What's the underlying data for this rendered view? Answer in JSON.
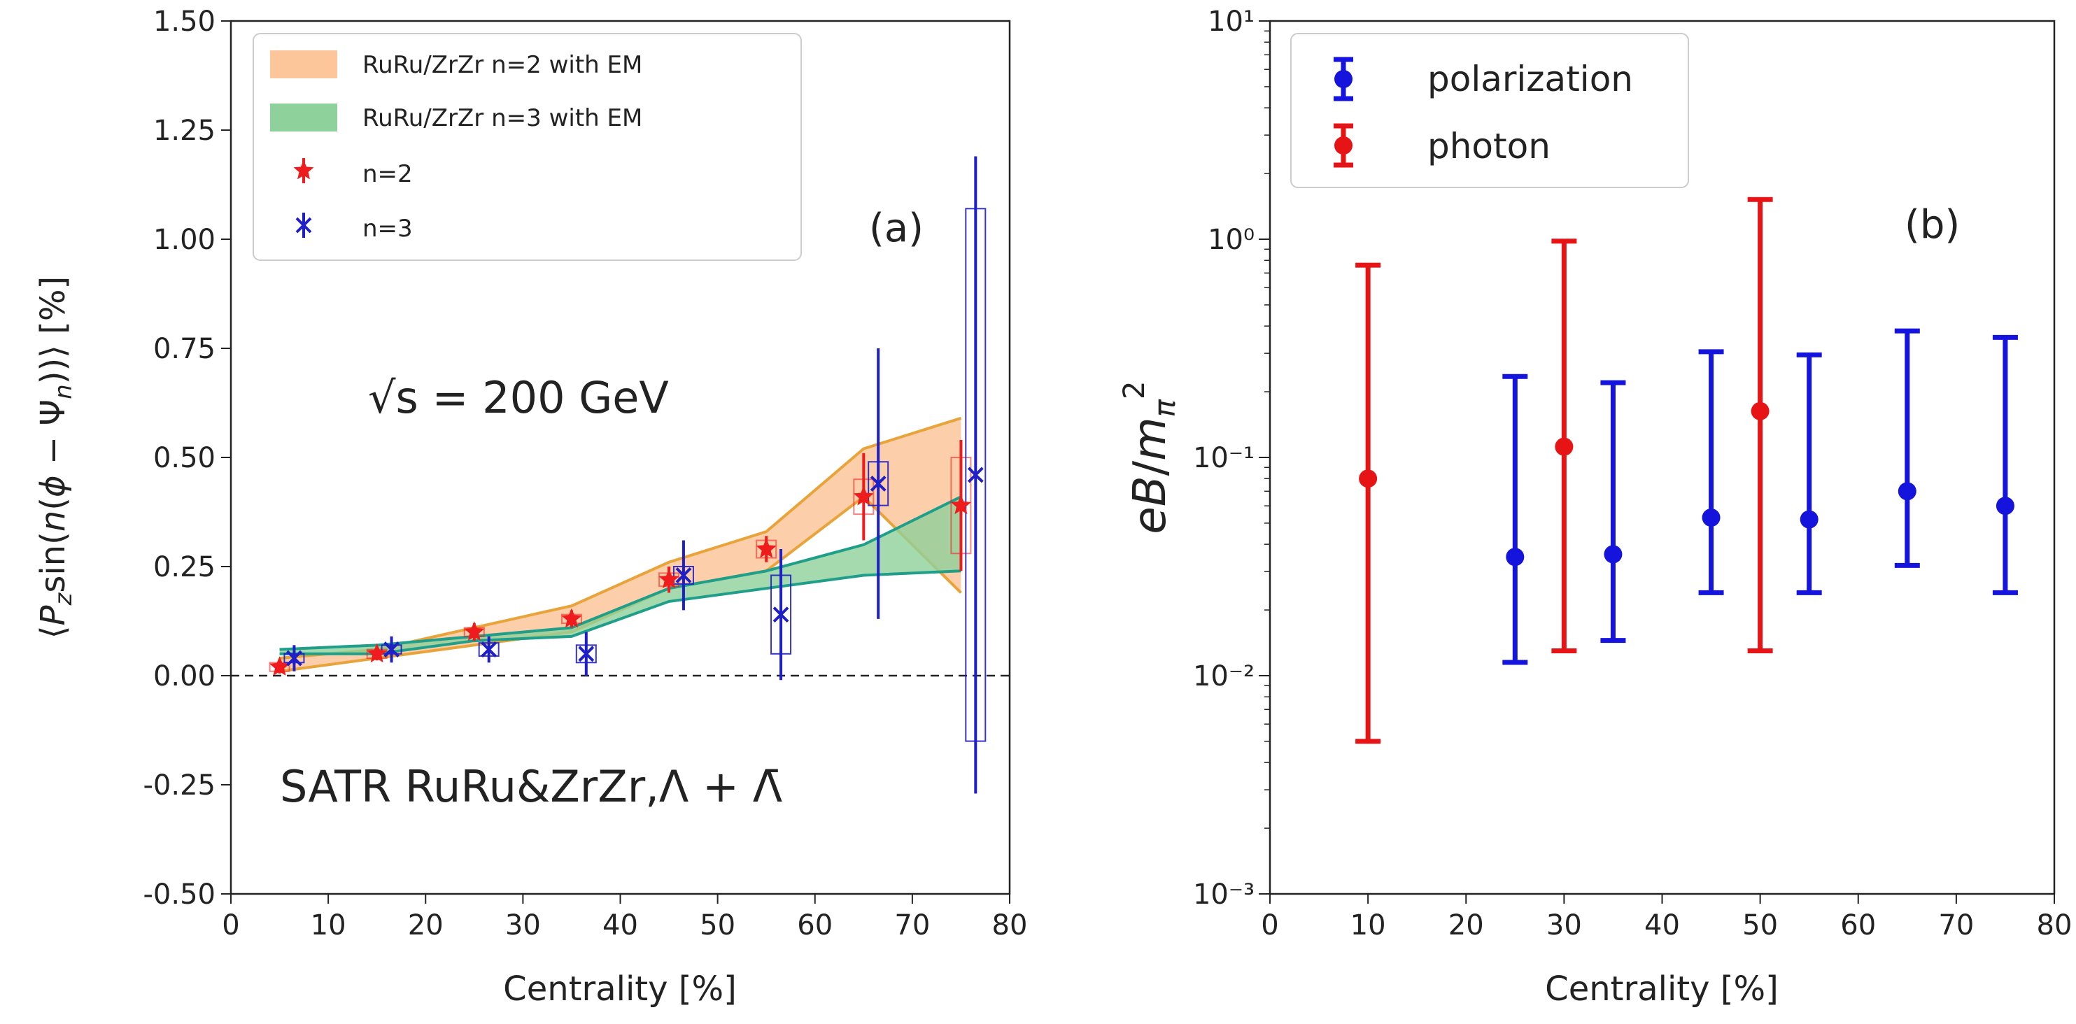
{
  "panel_a": {
    "tag": "(a)",
    "annotation_energy": "√s = 200 GeV",
    "annotation_system": "SATR RuRu&ZrZr,Λ + Λ̄",
    "legend": {
      "band_n2": "RuRu/ZrZr n=2 with EM",
      "band_n3": "RuRu/ZrZr n=3 with EM",
      "pts_n2": "n=2",
      "pts_n3": "n=3"
    }
  },
  "panel_b": {
    "tag": "(b)",
    "legend": {
      "polarization": "polarization",
      "photon": "photon"
    }
  },
  "colors": {
    "band_n2_fill": "#fcc69a",
    "band_n2_edge": "#e8a43a",
    "band_n3_fill": "#8fd19a",
    "band_n3_edge": "#1f9e8a",
    "n2": "#ee1c1c",
    "n3": "#1f1fc8",
    "polarization": "#1414dc",
    "photon": "#e61414"
  },
  "chart_data": [
    {
      "type": "scatter",
      "title": "",
      "xlabel": "Centrality [%]",
      "ylabel": "⟨P_z sin(n(φ − Ψ_n))⟩ [%]",
      "xlim": [
        0,
        80
      ],
      "ylim": [
        -0.5,
        1.5
      ],
      "xticks": [
        "0",
        "10",
        "20",
        "30",
        "40",
        "50",
        "60",
        "70",
        "80"
      ],
      "yticks": [
        "-0.50",
        "-0.25",
        "0.00",
        "0.25",
        "0.50",
        "0.75",
        "1.00",
        "1.25",
        "1.50"
      ],
      "zero_line": true,
      "legend_position": "top-left",
      "bands": [
        {
          "name": "RuRu/ZrZr n=2 with EM",
          "x": [
            5,
            15,
            25,
            35,
            45,
            55,
            65,
            75
          ],
          "upper": [
            0.04,
            0.06,
            0.11,
            0.16,
            0.26,
            0.33,
            0.52,
            0.59
          ],
          "lower": [
            0.01,
            0.04,
            0.07,
            0.1,
            0.2,
            0.24,
            0.41,
            0.19
          ]
        },
        {
          "name": "RuRu/ZrZr n=3 with EM",
          "x": [
            5,
            15,
            25,
            35,
            45,
            55,
            65,
            75
          ],
          "upper": [
            0.06,
            0.07,
            0.09,
            0.11,
            0.2,
            0.24,
            0.3,
            0.41
          ],
          "lower": [
            0.05,
            0.05,
            0.08,
            0.09,
            0.17,
            0.2,
            0.23,
            0.24
          ]
        }
      ],
      "series": [
        {
          "name": "n=2",
          "x": [
            5,
            15,
            25,
            35,
            45,
            55,
            65,
            75
          ],
          "y": [
            0.02,
            0.05,
            0.1,
            0.13,
            0.22,
            0.29,
            0.41,
            0.39
          ],
          "stat_err": [
            0.015,
            0.015,
            0.02,
            0.02,
            0.03,
            0.03,
            0.1,
            0.15
          ],
          "sys_err": [
            0.01,
            0.01,
            0.01,
            0.01,
            0.015,
            0.02,
            0.04,
            0.11
          ]
        },
        {
          "name": "n=3",
          "x": [
            6.5,
            16.5,
            26.5,
            36.5,
            46.5,
            56.5,
            66.5,
            76.5
          ],
          "y": [
            0.04,
            0.06,
            0.06,
            0.05,
            0.23,
            0.14,
            0.44,
            0.46
          ],
          "stat_err": [
            0.03,
            0.03,
            0.03,
            0.05,
            0.08,
            0.15,
            0.31,
            0.73
          ],
          "sys_err": [
            0.01,
            0.01,
            0.015,
            0.02,
            0.02,
            0.09,
            0.05,
            0.61
          ]
        }
      ]
    },
    {
      "type": "scatter",
      "title": "",
      "xlabel": "Centrality [%]",
      "ylabel": "eB/m_π²",
      "xlim": [
        0,
        80
      ],
      "ylim": [
        0.001,
        10
      ],
      "yscale": "log",
      "xticks": [
        "0",
        "10",
        "20",
        "30",
        "40",
        "50",
        "60",
        "70",
        "80"
      ],
      "yticks": [
        "10⁻³",
        "10⁻²",
        "10⁻¹",
        "10⁰",
        "10¹"
      ],
      "legend_position": "top-left",
      "series": [
        {
          "name": "polarization",
          "x": [
            25,
            35,
            45,
            55,
            65,
            75
          ],
          "y": [
            0.035,
            0.036,
            0.053,
            0.052,
            0.07,
            0.06
          ],
          "err_low": [
            0.0115,
            0.0145,
            0.024,
            0.024,
            0.032,
            0.024
          ],
          "err_high": [
            0.235,
            0.22,
            0.305,
            0.295,
            0.38,
            0.355
          ]
        },
        {
          "name": "photon",
          "x": [
            10,
            30,
            50
          ],
          "y": [
            0.08,
            0.112,
            0.163
          ],
          "err_low": [
            0.005,
            0.013,
            0.013
          ],
          "err_high": [
            0.76,
            0.98,
            1.52
          ]
        }
      ]
    }
  ]
}
